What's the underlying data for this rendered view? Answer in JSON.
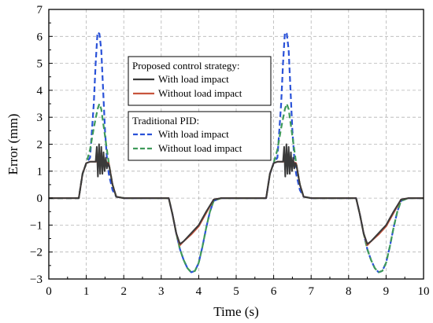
{
  "chart_data": {
    "type": "line",
    "xlabel": "Time (s)",
    "ylabel": "Error (mm)",
    "xlim": [
      0,
      10
    ],
    "ylim": [
      -3,
      7
    ],
    "xticks": [
      0,
      1,
      2,
      3,
      4,
      5,
      6,
      7,
      8,
      9,
      10
    ],
    "yticks": [
      -3,
      -2,
      -1,
      0,
      1,
      2,
      3,
      4,
      5,
      6,
      7
    ],
    "grid": true,
    "legend_position": "top-center",
    "legend_groups": [
      {
        "title": "Proposed control strategy:",
        "entries": [
          {
            "label": "With load impact",
            "series_index": 0
          },
          {
            "label": "Without load impact",
            "series_index": 1
          }
        ]
      },
      {
        "title": "Traditional PID:",
        "entries": [
          {
            "label": "With load impact",
            "series_index": 2
          },
          {
            "label": "Without load impact",
            "series_index": 3
          }
        ]
      }
    ],
    "series": [
      {
        "name": "With load impact",
        "color": "#3a3a3a",
        "dash": "solid",
        "x": [
          0,
          0.8,
          0.9,
          1.0,
          1.1,
          1.2,
          1.25,
          1.28,
          1.31,
          1.34,
          1.37,
          1.4,
          1.43,
          1.46,
          1.49,
          1.52,
          1.55,
          1.58,
          1.61,
          1.7,
          1.8,
          2.0,
          3.2,
          3.3,
          3.4,
          3.5,
          3.6,
          3.8,
          4.0,
          4.2,
          4.4,
          4.6,
          5.8,
          5.9,
          6.0,
          6.1,
          6.2,
          6.25,
          6.28,
          6.31,
          6.34,
          6.37,
          6.4,
          6.43,
          6.46,
          6.49,
          6.52,
          6.55,
          6.58,
          6.61,
          6.7,
          6.8,
          7.0,
          8.2,
          8.3,
          8.4,
          8.5,
          8.6,
          8.8,
          9.0,
          9.2,
          9.4,
          9.6,
          10
        ],
        "y": [
          0,
          0,
          0.9,
          1.3,
          1.35,
          1.35,
          1.35,
          1.9,
          0.8,
          2.0,
          0.9,
          1.9,
          0.9,
          1.7,
          1.0,
          1.5,
          1.1,
          1.3,
          1.2,
          0.5,
          0.05,
          0,
          0,
          -0.6,
          -1.3,
          -1.7,
          -1.6,
          -1.3,
          -1.0,
          -0.5,
          -0.05,
          0,
          0,
          0.9,
          1.3,
          1.35,
          1.35,
          1.35,
          1.9,
          0.8,
          2.0,
          0.9,
          1.9,
          0.9,
          1.7,
          1.0,
          1.5,
          1.1,
          1.3,
          1.2,
          0.5,
          0.05,
          0,
          0,
          -0.6,
          -1.3,
          -1.7,
          -1.6,
          -1.3,
          -1.0,
          -0.5,
          -0.05,
          0,
          0
        ]
      },
      {
        "name": "Without load impact",
        "color": "#c8553d",
        "dash": "solid",
        "x": [
          0,
          0.8,
          0.9,
          1.0,
          1.1,
          1.3,
          1.5,
          1.6,
          1.7,
          1.8,
          2.0,
          3.2,
          3.3,
          3.4,
          3.5,
          3.6,
          3.8,
          4.0,
          4.2,
          4.4,
          4.6,
          5.8,
          5.9,
          6.0,
          6.1,
          6.3,
          6.5,
          6.6,
          6.7,
          6.8,
          7.0,
          8.2,
          8.3,
          8.4,
          8.5,
          8.6,
          8.8,
          9.0,
          9.2,
          9.4,
          9.6,
          10
        ],
        "y": [
          0,
          0,
          0.9,
          1.3,
          1.35,
          1.35,
          1.35,
          1.3,
          0.5,
          0.05,
          0,
          0,
          -0.6,
          -1.3,
          -1.75,
          -1.6,
          -1.35,
          -1.05,
          -0.55,
          -0.05,
          0,
          0,
          0.9,
          1.3,
          1.35,
          1.35,
          1.35,
          1.3,
          0.5,
          0.05,
          0,
          0,
          -0.6,
          -1.3,
          -1.75,
          -1.6,
          -1.35,
          -1.05,
          -0.55,
          -0.05,
          0,
          0
        ]
      },
      {
        "name": "With load impact",
        "color": "#2a52d8",
        "dash": "dashed",
        "x": [
          0,
          0.8,
          0.9,
          1.0,
          1.1,
          1.2,
          1.25,
          1.3,
          1.35,
          1.4,
          1.45,
          1.5,
          1.55,
          1.6,
          1.7,
          1.8,
          2.0,
          3.2,
          3.3,
          3.4,
          3.5,
          3.6,
          3.7,
          3.8,
          3.9,
          4.0,
          4.1,
          4.2,
          4.3,
          4.4,
          4.6,
          5.8,
          5.9,
          6.0,
          6.1,
          6.2,
          6.25,
          6.3,
          6.35,
          6.4,
          6.45,
          6.5,
          6.55,
          6.6,
          6.7,
          6.8,
          7.0,
          8.2,
          8.3,
          8.4,
          8.5,
          8.6,
          8.7,
          8.8,
          8.9,
          9.0,
          9.1,
          9.2,
          9.3,
          9.4,
          9.6,
          10
        ],
        "y": [
          0,
          0,
          0.9,
          1.3,
          1.5,
          3.5,
          5.0,
          6.15,
          6.1,
          5.5,
          4.0,
          2.5,
          1.5,
          0.9,
          0.3,
          0.05,
          0,
          0,
          -0.6,
          -1.3,
          -1.9,
          -2.3,
          -2.6,
          -2.75,
          -2.7,
          -2.4,
          -1.8,
          -1.1,
          -0.5,
          -0.1,
          0,
          0,
          0.9,
          1.3,
          1.5,
          3.5,
          5.0,
          6.15,
          6.1,
          5.5,
          4.0,
          2.5,
          1.5,
          0.9,
          0.3,
          0.05,
          0,
          0,
          -0.6,
          -1.3,
          -1.9,
          -2.3,
          -2.6,
          -2.75,
          -2.7,
          -2.4,
          -1.8,
          -1.1,
          -0.5,
          -0.1,
          0,
          0
        ]
      },
      {
        "name": "Without load impact",
        "color": "#3f9a5a",
        "dash": "dashed",
        "x": [
          0,
          0.8,
          0.9,
          1.0,
          1.1,
          1.2,
          1.3,
          1.35,
          1.4,
          1.5,
          1.6,
          1.7,
          1.8,
          2.0,
          3.2,
          3.3,
          3.4,
          3.5,
          3.6,
          3.7,
          3.8,
          3.9,
          4.0,
          4.1,
          4.2,
          4.3,
          4.4,
          4.6,
          5.8,
          5.9,
          6.0,
          6.1,
          6.2,
          6.3,
          6.35,
          6.4,
          6.5,
          6.6,
          6.7,
          6.8,
          7.0,
          8.2,
          8.3,
          8.4,
          8.5,
          8.6,
          8.7,
          8.8,
          8.9,
          9.0,
          9.1,
          9.2,
          9.3,
          9.4,
          9.6,
          10
        ],
        "y": [
          0,
          0,
          0.9,
          1.3,
          1.8,
          2.6,
          3.3,
          3.5,
          3.3,
          2.3,
          1.3,
          0.5,
          0.05,
          0,
          0,
          -0.6,
          -1.3,
          -1.9,
          -2.3,
          -2.6,
          -2.75,
          -2.7,
          -2.4,
          -1.8,
          -1.1,
          -0.5,
          -0.1,
          0,
          0,
          0.9,
          1.3,
          1.8,
          2.6,
          3.3,
          3.5,
          3.3,
          2.3,
          1.3,
          0.5,
          0.05,
          0,
          0,
          -0.6,
          -1.3,
          -1.9,
          -2.3,
          -2.6,
          -2.75,
          -2.7,
          -2.4,
          -1.8,
          -1.1,
          -0.5,
          -0.1,
          0,
          0
        ]
      }
    ]
  }
}
